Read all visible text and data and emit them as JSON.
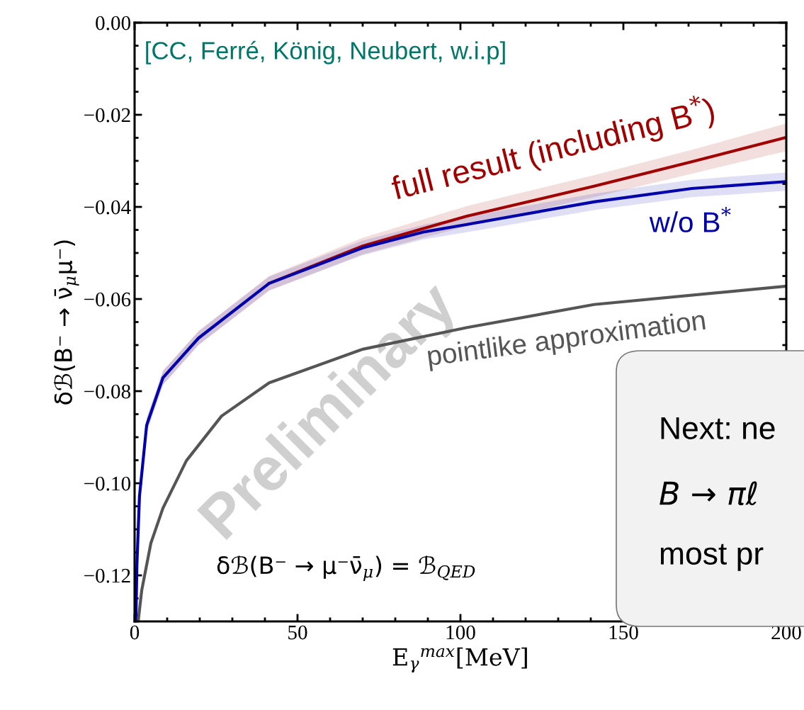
{
  "chart_data": {
    "type": "line",
    "xlabel": "E$_{γ}$$^{max}$[MeV]",
    "ylabel": "δℬ(B⁻ → ν̄$_{μ}$μ⁻)",
    "xlim": [
      0,
      200
    ],
    "xticks": [
      0,
      50,
      100,
      150,
      200
    ],
    "ylim": [
      -0.13,
      0.0
    ],
    "yticks": [
      {
        "value": -0.12,
        "label": "−0.12"
      },
      {
        "value": -0.1,
        "label": "−0.10"
      },
      {
        "value": -0.08,
        "label": "−0.08"
      },
      {
        "value": -0.06,
        "label": "−0.06"
      },
      {
        "value": -0.04,
        "label": "−0.04"
      },
      {
        "value": -0.02,
        "label": "−0.02"
      },
      {
        "value": 0.0,
        "label": "0.00"
      }
    ],
    "grid": false,
    "legend": false,
    "marker": "none",
    "line_style": "solid",
    "series": [
      {
        "name": "full result (including B$^{*}$)",
        "color": "#a00000",
        "x": [
          0.4,
          0.7,
          1.5,
          3.7,
          8.7,
          19.6,
          41.3,
          70,
          89,
          102,
          141,
          171,
          200
        ],
        "values": [
          null,
          null,
          null,
          null,
          null,
          null,
          -0.0566,
          -0.0485,
          -0.0446,
          -0.042,
          -0.0355,
          -0.0302,
          -0.0249
        ],
        "lower": [
          -0.13,
          -0.1195,
          -0.1043,
          -0.0889,
          -0.0786,
          -0.07,
          -0.0582,
          -0.0503,
          -0.0466,
          -0.0442,
          -0.0379,
          -0.0328,
          -0.0279
        ],
        "upper": [
          -0.1285,
          -0.1165,
          -0.1013,
          -0.0859,
          -0.0756,
          -0.067,
          -0.055,
          -0.0467,
          -0.0426,
          -0.0398,
          -0.0331,
          -0.0276,
          -0.0219
        ]
      },
      {
        "name": "w/o B$^{*}$",
        "color": "#0000aa",
        "x": [
          0.4,
          0.7,
          1.5,
          3.7,
          8.7,
          19.6,
          41.3,
          70,
          89,
          102,
          141,
          171,
          200
        ],
        "values": [
          -0.13,
          -0.118,
          -0.1028,
          -0.0874,
          -0.0771,
          -0.0685,
          -0.0566,
          -0.0489,
          -0.0454,
          -0.0438,
          -0.0389,
          -0.036,
          -0.0345
        ],
        "lower": [
          -0.13,
          -0.1195,
          -0.1043,
          -0.0889,
          -0.0786,
          -0.07,
          -0.0581,
          -0.0505,
          -0.047,
          -0.0455,
          -0.0407,
          -0.0379,
          -0.0365
        ],
        "upper": [
          -0.1285,
          -0.1165,
          -0.1013,
          -0.0859,
          -0.0756,
          -0.067,
          -0.0551,
          -0.0473,
          -0.0438,
          -0.0421,
          -0.0371,
          -0.0341,
          -0.0325
        ]
      },
      {
        "name": "pointlike approximation",
        "color": "#555555",
        "x": [
          1.1,
          2.2,
          5,
          8.7,
          15.9,
          26.7,
          41.3,
          70,
          102,
          141,
          200
        ],
        "values": [
          -0.13,
          -0.1232,
          -0.113,
          -0.1054,
          -0.0951,
          -0.0854,
          -0.0782,
          -0.0709,
          -0.0662,
          -0.0612,
          -0.0572
        ]
      }
    ],
    "annotations": [
      "[CC, Ferré, König, Neubert, w.i.p]",
      "Preliminary",
      "δℬ(B⁻ → μ⁻ν̄$_{μ}$) = ℬ$_{QED}$",
      "Next: ne",
      "B → πℓ",
      "most pr"
    ]
  }
}
